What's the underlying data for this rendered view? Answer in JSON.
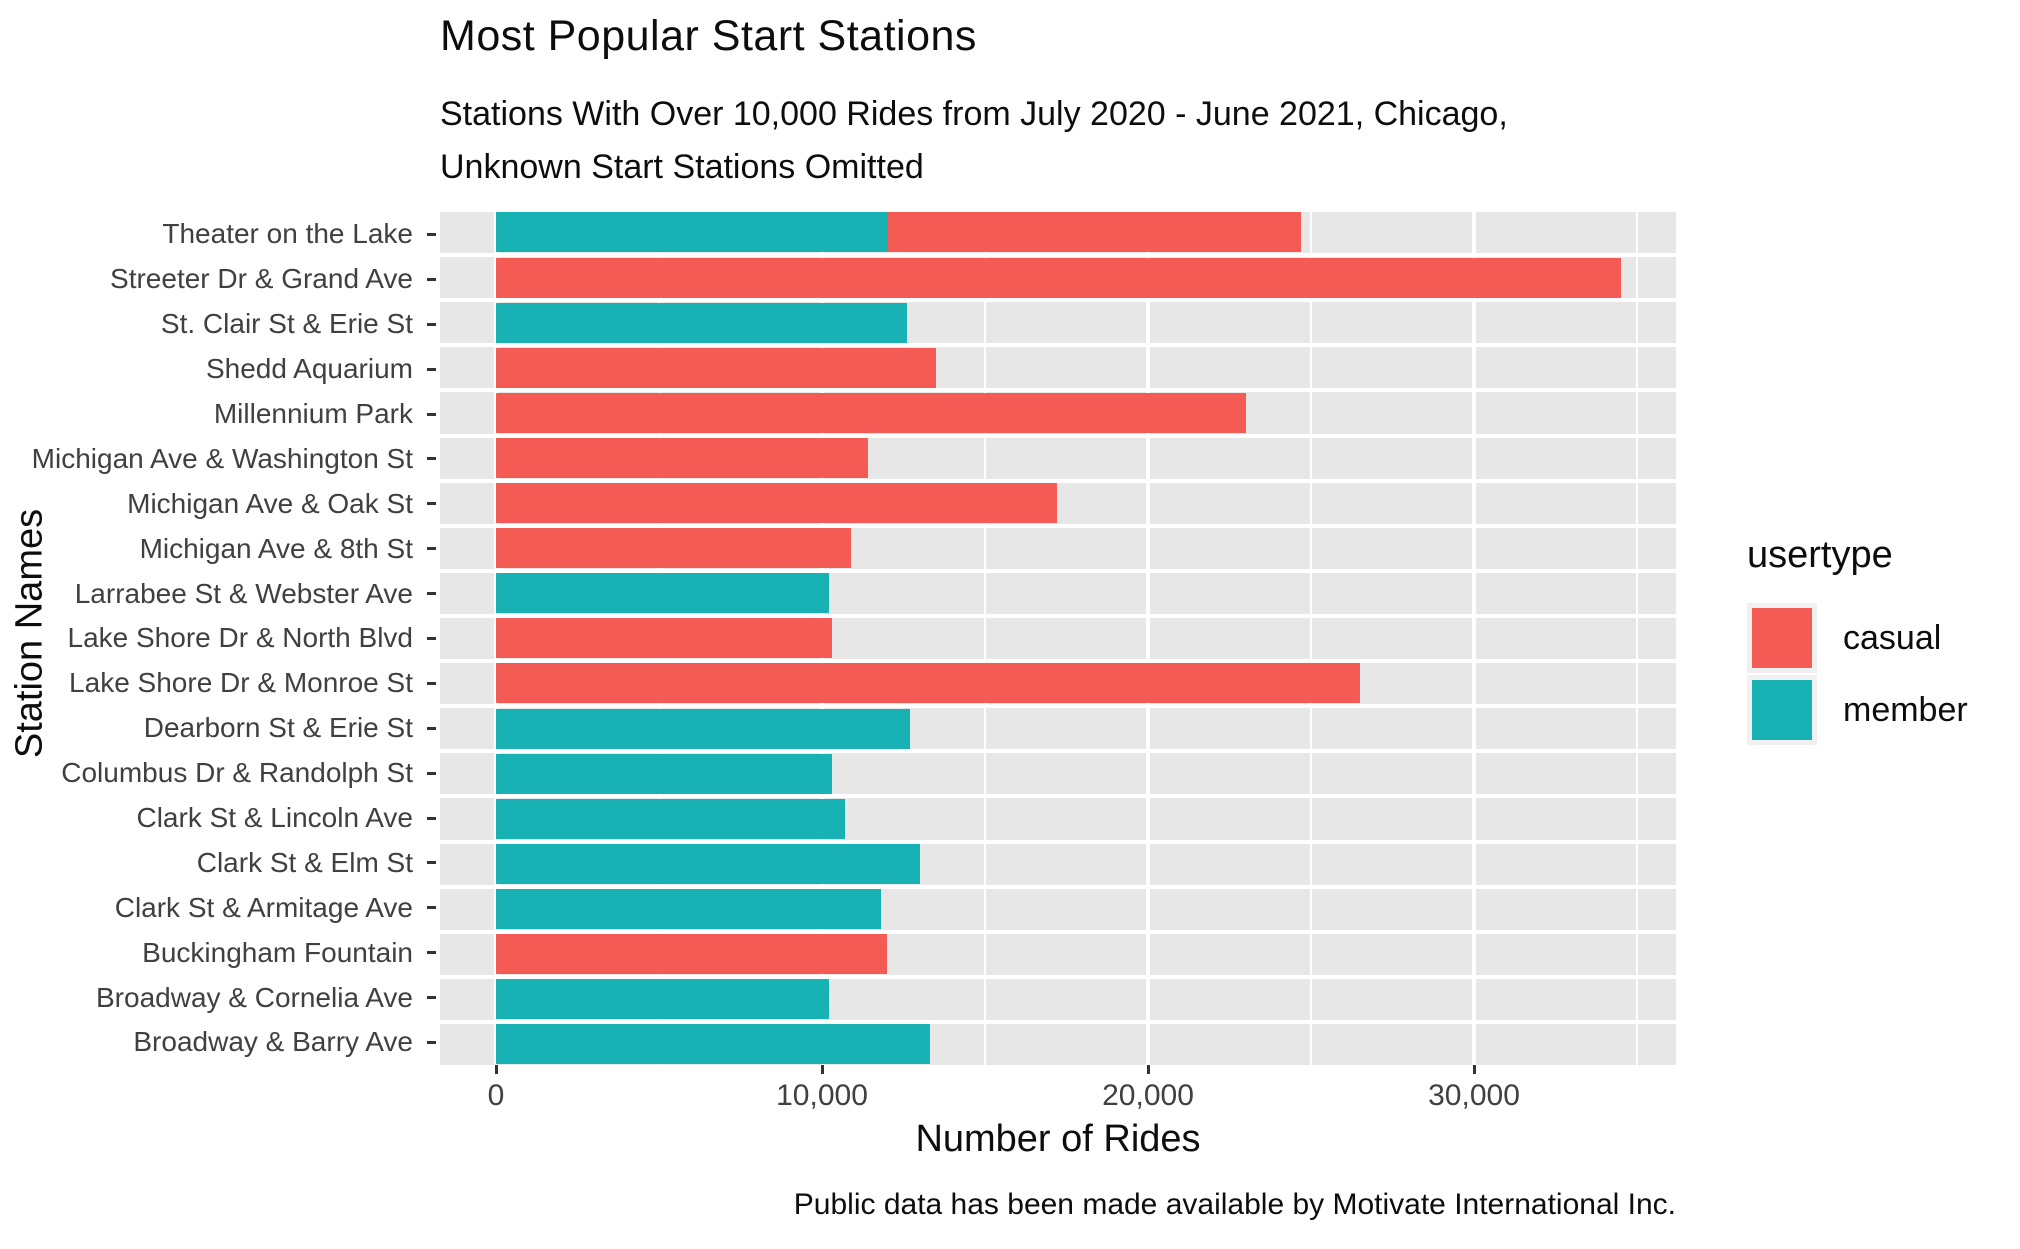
{
  "header": {
    "title": "Most Popular Start Stations",
    "subtitle_lines": [
      "Stations With Over 10,000 Rides from July 2020 - June 2021, Chicago,",
      "Unknown Start Stations Omitted"
    ]
  },
  "chart_data": {
    "type": "bar",
    "orientation": "horizontal",
    "stacked": true,
    "title": "Most Popular Start Stations",
    "subtitle": "Stations With Over 10,000 Rides from July 2020 - June 2021, Chicago, Unknown Start Stations Omitted",
    "xlabel": "Number of Rides",
    "ylabel": "Station Names",
    "caption": "Public data has been made available by Motivate International Inc.",
    "xlim": [
      0,
      36200
    ],
    "x_ticks": [
      0,
      10000,
      20000,
      30000
    ],
    "x_tick_labels": [
      "0",
      "10,000",
      "20,000",
      "30,000"
    ],
    "x_minor_ticks": [
      5000,
      15000,
      25000,
      35000
    ],
    "grid": true,
    "panel_background": "#E7E7E7",
    "legend": {
      "title": "usertype",
      "position": "right",
      "entries": [
        {
          "label": "casual",
          "color": "#F35B54"
        },
        {
          "label": "member",
          "color": "#19B2B4"
        }
      ]
    },
    "categories": [
      "Theater on the Lake",
      "Streeter Dr & Grand Ave",
      "St. Clair St & Erie St",
      "Shedd Aquarium",
      "Millennium Park",
      "Michigan Ave & Washington St",
      "Michigan Ave & Oak St",
      "Michigan Ave & 8th St",
      "Larrabee St & Webster Ave",
      "Lake Shore Dr & North Blvd",
      "Lake Shore Dr & Monroe St",
      "Dearborn St & Erie St",
      "Columbus Dr & Randolph St",
      "Clark St & Lincoln Ave",
      "Clark St & Elm St",
      "Clark St & Armitage Ave",
      "Buckingham Fountain",
      "Broadway & Cornelia Ave",
      "Broadway & Barry Ave"
    ],
    "series": [
      {
        "name": "member",
        "color": "#19B2B4",
        "values": [
          12000,
          0,
          12600,
          0,
          0,
          0,
          0,
          0,
          10200,
          0,
          0,
          12700,
          10300,
          10700,
          13000,
          11800,
          0,
          10200,
          13300
        ]
      },
      {
        "name": "casual",
        "color": "#F35B54",
        "values": [
          12700,
          34500,
          0,
          13500,
          23000,
          11400,
          17200,
          10900,
          0,
          10300,
          26500,
          0,
          0,
          0,
          0,
          0,
          12000,
          0,
          0
        ]
      }
    ]
  }
}
